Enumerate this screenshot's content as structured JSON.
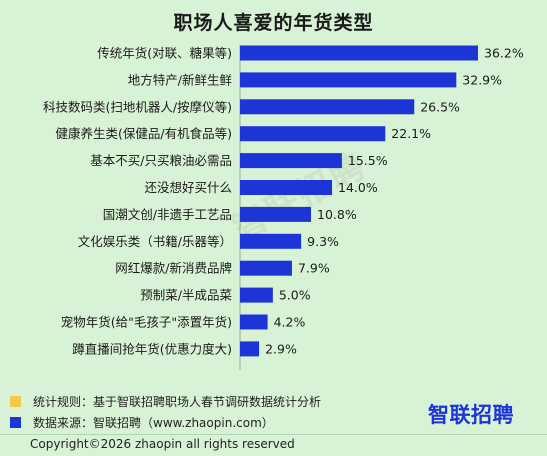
{
  "chart_data": {
    "type": "bar",
    "orientation": "horizontal",
    "title": "职场人喜爱的年货类型",
    "categories": [
      "传统年货(对联、糖果等)",
      "地方特产/新鲜生鲜",
      "科技数码类(扫地机器人/按摩仪等)",
      "健康养生类(保健品/有机食品等)",
      "基本不买/只买粮油必需品",
      "还没想好买什么",
      "国潮文创/非遗手工艺品",
      "文化娱乐类（书籍/乐器等）",
      "网红爆款/新消费品牌",
      "预制菜/半成品菜",
      "宠物年货(给\"毛孩子\"添置年货)",
      "蹲直播间抢年货(优惠力度大)"
    ],
    "values": [
      36.2,
      32.9,
      26.5,
      22.1,
      15.5,
      14.0,
      10.8,
      9.3,
      7.9,
      5.0,
      4.2,
      2.9
    ],
    "value_labels": [
      "36.2%",
      "32.9%",
      "26.5%",
      "22.1%",
      "15.5%",
      "14.0%",
      "10.8%",
      "9.3%",
      "7.9%",
      "5.0%",
      "4.2%",
      "2.9%"
    ],
    "unit": "%",
    "bar_color": "#1d35d6",
    "grid": false,
    "legend": "none"
  },
  "notes": {
    "rule": "统计规则：基于智联招聘职场人春节调研数据统计分析",
    "rule_color": "#f3c94a",
    "source": "数据来源：智联招聘（www.zhaopin.com）",
    "source_color": "#1d35d6"
  },
  "logo": {
    "text": "智联招聘"
  },
  "watermark": {
    "text": "智联招聘"
  },
  "copyright": "Copyright©2026 zhaopin all rights reserved"
}
